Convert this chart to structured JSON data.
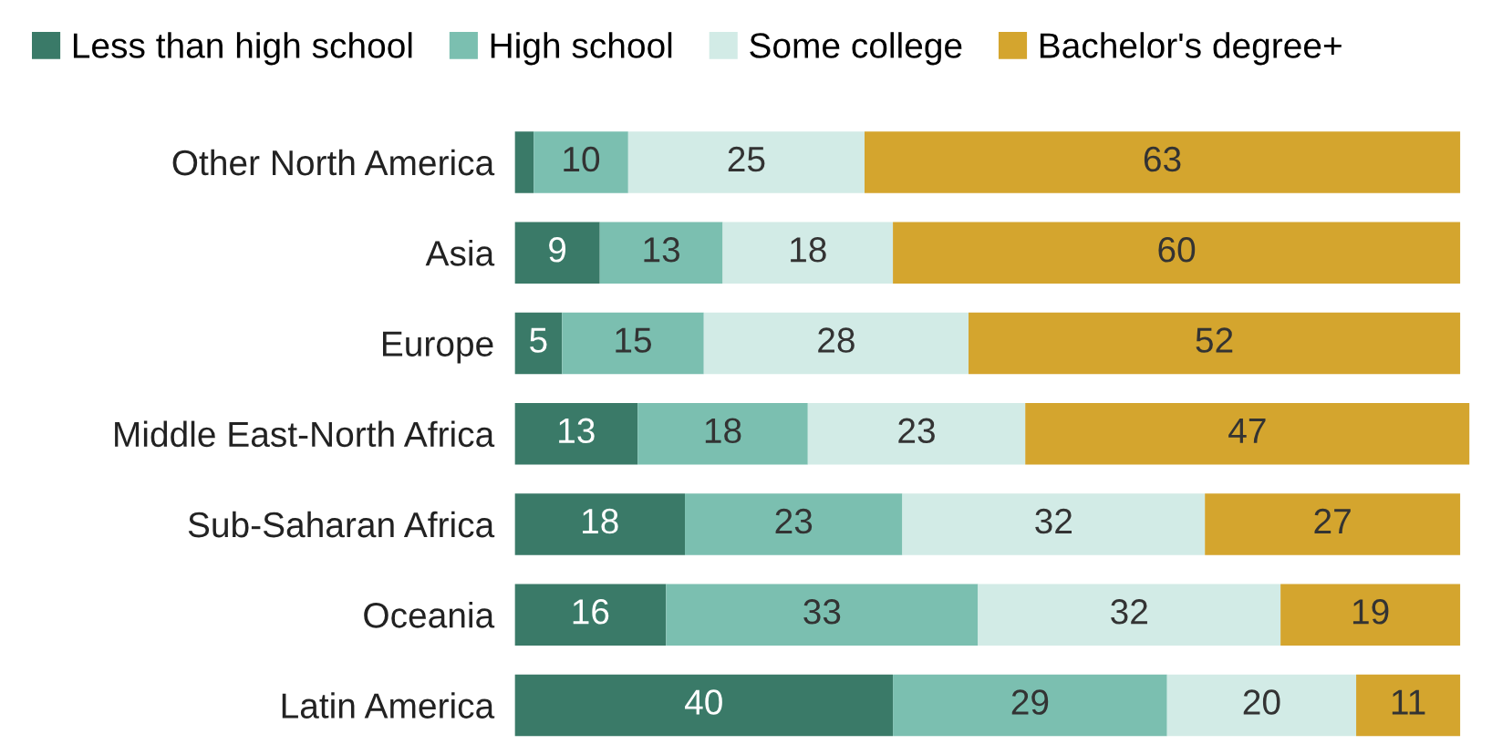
{
  "chart_data": {
    "type": "bar",
    "orientation": "horizontal",
    "stacked": true,
    "legend": "top",
    "categories": [
      "Other North America",
      "Asia",
      "Europe",
      "Middle East-North Africa",
      "Sub-Saharan Africa",
      "Oceania",
      "Latin America"
    ],
    "series": [
      {
        "name": "Less than high school",
        "color": "#3a7a68",
        "values": [
          2,
          9,
          5,
          13,
          18,
          16,
          40
        ],
        "value_labels": [
          null,
          "9",
          "5",
          "13",
          "18",
          "16",
          "40"
        ]
      },
      {
        "name": "High school",
        "color": "#7bbfb0",
        "values": [
          10,
          13,
          15,
          18,
          23,
          33,
          29
        ],
        "value_labels": [
          "10",
          "13",
          "15",
          "18",
          "23",
          "33",
          "29"
        ]
      },
      {
        "name": "Some college",
        "color": "#d2ebe6",
        "values": [
          25,
          18,
          28,
          23,
          32,
          32,
          20
        ],
        "value_labels": [
          "25",
          "18",
          "28",
          "23",
          "32",
          "32",
          "20"
        ]
      },
      {
        "name": "Bachelor's degree+",
        "color": "#d4a52e",
        "values": [
          63,
          60,
          52,
          47,
          27,
          19,
          11
        ],
        "value_labels": [
          "63",
          "60",
          "52",
          "47",
          "27",
          "19",
          "11"
        ]
      }
    ]
  }
}
